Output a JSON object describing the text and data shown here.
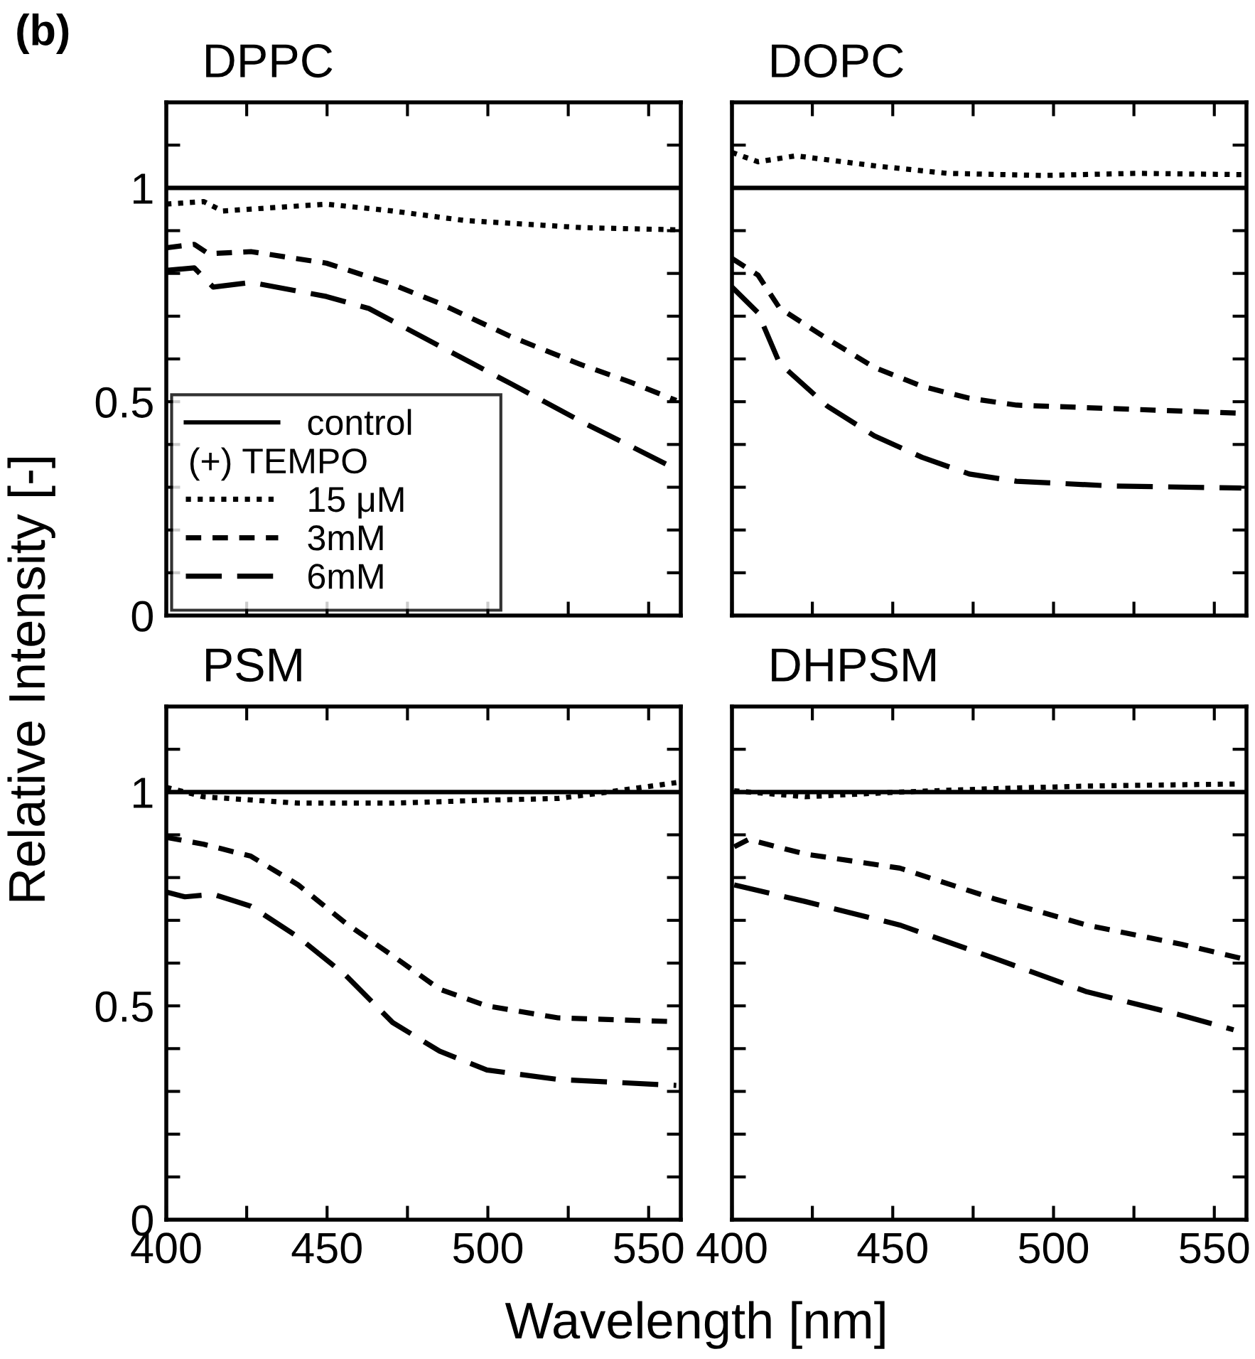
{
  "chart_data": [
    {
      "type": "line",
      "title": "DPPC",
      "ylabel": "Relative Intensity [-]",
      "xlabel": "Wavelength [nm]",
      "annotations": [
        "(b)",
        "(+) TEMPO"
      ],
      "xlim": [
        400,
        560
      ],
      "ylim": [
        0,
        1.2
      ],
      "xticks": [
        400,
        {
          "value": 425,
          "label": null
        },
        450,
        {
          "value": 475,
          "label": null
        },
        500,
        {
          "value": 525,
          "label": null
        },
        550
      ],
      "yticks": [
        0,
        {
          "value": 0.1,
          "label": null
        },
        {
          "value": 0.2,
          "label": null
        },
        {
          "value": 0.3,
          "label": null
        },
        {
          "value": 0.4,
          "label": null
        },
        0.5,
        {
          "value": 0.6,
          "label": null
        },
        {
          "value": 0.7,
          "label": null
        },
        {
          "value": 0.8,
          "label": null
        },
        {
          "value": 0.9,
          "label": null
        },
        1,
        {
          "value": 1.1,
          "label": null
        }
      ],
      "tick_labels": "y",
      "grid": false,
      "legend": "bottom left",
      "series": [
        {
          "name": "control",
          "color": "#000000",
          "line_style": "solid",
          "x": [
            400,
            560
          ],
          "values": [
            1,
            1
          ]
        },
        {
          "name": "15 μM",
          "color": "#000000",
          "line_style": "dotted",
          "x": [
            400,
            411.6,
            417.5,
            449.8,
            470.4,
            492.5,
            529.2,
            558.6
          ],
          "values": [
            0.962,
            0.968,
            0.946,
            0.962,
            0.946,
            0.924,
            0.907,
            0.902
          ]
        },
        {
          "name": "3mM",
          "color": "#000000",
          "line_style": "dashed",
          "x": [
            400,
            408.7,
            413.1,
            426.3,
            449.8,
            470.4,
            485,
            507.2,
            529.2,
            543.9,
            558.6
          ],
          "values": [
            0.86,
            0.868,
            0.846,
            0.851,
            0.824,
            0.774,
            0.73,
            0.652,
            0.586,
            0.547,
            0.503
          ]
        },
        {
          "name": "6mM",
          "color": "#000000",
          "line_style": "dashed",
          "x": [
            400,
            408.7,
            414.6,
            426.3,
            449.8,
            463,
            485,
            507.2,
            529.2,
            543.9,
            558.6
          ],
          "values": [
            0.807,
            0.813,
            0.768,
            0.779,
            0.746,
            0.718,
            0.63,
            0.542,
            0.453,
            0.398,
            0.342
          ]
        }
      ]
    },
    {
      "type": "line",
      "title": "DOPC",
      "xlim": [
        400,
        560
      ],
      "ylim": [
        0,
        1.2
      ],
      "xticks": [
        400,
        {
          "value": 425,
          "label": null
        },
        450,
        {
          "value": 475,
          "label": null
        },
        500,
        {
          "value": 525,
          "label": null
        },
        550
      ],
      "yticks": [
        0,
        {
          "value": 0.1,
          "label": null
        },
        {
          "value": 0.2,
          "label": null
        },
        {
          "value": 0.3,
          "label": null
        },
        {
          "value": 0.4,
          "label": null
        },
        0.5,
        {
          "value": 0.6,
          "label": null
        },
        {
          "value": 0.7,
          "label": null
        },
        {
          "value": 0.8,
          "label": null
        },
        {
          "value": 0.9,
          "label": null
        },
        1,
        {
          "value": 1.1,
          "label": null
        }
      ],
      "tick_labels": false,
      "grid": false,
      "series": [
        {
          "color": "#000000",
          "line_style": "solid",
          "x": [
            400,
            560
          ],
          "values": [
            1,
            1
          ]
        },
        {
          "color": "#000000",
          "line_style": "dotted",
          "x": [
            400,
            408.1,
            419.9,
            445,
            467,
            496.5,
            526,
            558.4
          ],
          "values": [
            1.083,
            1.061,
            1.075,
            1.051,
            1.034,
            1.029,
            1.034,
            1.031
          ]
        },
        {
          "color": "#000000",
          "line_style": "dashed",
          "x": [
            400,
            408.1,
            414.8,
            429.6,
            444.3,
            459.1,
            473.8,
            488.5,
            518,
            558.4
          ],
          "values": [
            0.835,
            0.796,
            0.719,
            0.647,
            0.58,
            0.536,
            0.508,
            0.492,
            0.484,
            0.473
          ]
        },
        {
          "color": "#000000",
          "line_style": "dashed",
          "x": [
            400,
            408.1,
            414.8,
            429.6,
            444.3,
            459.1,
            473.8,
            488.5,
            518,
            558.4
          ],
          "values": [
            0.768,
            0.708,
            0.59,
            0.49,
            0.42,
            0.37,
            0.331,
            0.314,
            0.303,
            0.298
          ]
        }
      ]
    },
    {
      "type": "line",
      "title": "PSM",
      "xlim": [
        400,
        560
      ],
      "ylim": [
        0,
        1.2
      ],
      "xticks": [
        400,
        {
          "value": 425,
          "label": null
        },
        450,
        {
          "value": 475,
          "label": null
        },
        500,
        {
          "value": 525,
          "label": null
        },
        550
      ],
      "yticks": [
        0,
        {
          "value": 0.1,
          "label": null
        },
        {
          "value": 0.2,
          "label": null
        },
        {
          "value": 0.3,
          "label": null
        },
        {
          "value": 0.4,
          "label": null
        },
        0.5,
        {
          "value": 0.6,
          "label": null
        },
        {
          "value": 0.7,
          "label": null
        },
        {
          "value": 0.8,
          "label": null
        },
        {
          "value": 0.9,
          "label": null
        },
        1,
        {
          "value": 1.1,
          "label": null
        }
      ],
      "grid": false,
      "series": [
        {
          "color": "#000000",
          "line_style": "solid",
          "x": [
            400,
            560
          ],
          "values": [
            1,
            1
          ]
        },
        {
          "color": "#000000",
          "line_style": "dotted",
          "x": [
            400,
            411.6,
            441,
            470.4,
            499.7,
            521.8,
            536.5,
            558.6
          ],
          "values": [
            1.011,
            0.989,
            0.974,
            0.974,
            0.981,
            0.985,
            0.999,
            1.022
          ]
        },
        {
          "color": "#000000",
          "line_style": "dashed",
          "x": [
            400,
            411.6,
            426.3,
            441,
            455.7,
            470.4,
            485,
            499.7,
            521.8,
            558.6
          ],
          "values": [
            0.894,
            0.878,
            0.85,
            0.783,
            0.694,
            0.617,
            0.539,
            0.5,
            0.472,
            0.463
          ]
        },
        {
          "color": "#000000",
          "line_style": "dashed",
          "x": [
            400,
            405.8,
            414.6,
            426.3,
            441,
            455.7,
            470.4,
            485,
            499.7,
            521.8,
            558.6
          ],
          "values": [
            0.766,
            0.755,
            0.761,
            0.733,
            0.661,
            0.572,
            0.461,
            0.394,
            0.35,
            0.328,
            0.314
          ]
        }
      ]
    },
    {
      "type": "line",
      "title": "DHPSM",
      "xlim": [
        400,
        560
      ],
      "ylim": [
        0,
        1.2
      ],
      "xticks": [
        400,
        {
          "value": 425,
          "label": null
        },
        450,
        {
          "value": 475,
          "label": null
        },
        500,
        {
          "value": 525,
          "label": null
        },
        550
      ],
      "yticks": [
        0,
        {
          "value": 0.1,
          "label": null
        },
        {
          "value": 0.2,
          "label": null
        },
        {
          "value": 0.3,
          "label": null
        },
        {
          "value": 0.4,
          "label": null
        },
        0.5,
        {
          "value": 0.6,
          "label": null
        },
        {
          "value": 0.7,
          "label": null
        },
        {
          "value": 0.8,
          "label": null
        },
        {
          "value": 0.9,
          "label": null
        },
        1,
        {
          "value": 1.1,
          "label": null
        }
      ],
      "tick_labels": "x",
      "grid": false,
      "series": [
        {
          "color": "#000000",
          "line_style": "solid",
          "x": [
            400,
            560
          ],
          "values": [
            1,
            1
          ]
        },
        {
          "color": "#000000",
          "line_style": "dotted",
          "x": [
            400.7,
            422.8,
            452.2,
            481.7,
            510.3,
            558.4
          ],
          "values": [
            1.003,
            0.989,
            1.0,
            1.008,
            1.014,
            1.019
          ]
        },
        {
          "color": "#000000",
          "line_style": "dashed",
          "x": [
            400.7,
            405.1,
            422.8,
            452.2,
            481.7,
            510.3,
            539.8,
            558.4
          ],
          "values": [
            0.872,
            0.889,
            0.855,
            0.822,
            0.75,
            0.689,
            0.644,
            0.611
          ]
        },
        {
          "color": "#000000",
          "line_style": "dashed",
          "x": [
            400.7,
            422.8,
            452.2,
            481.7,
            510.3,
            539.8,
            556
          ],
          "values": [
            0.783,
            0.744,
            0.689,
            0.611,
            0.533,
            0.478,
            0.444
          ]
        }
      ]
    }
  ]
}
